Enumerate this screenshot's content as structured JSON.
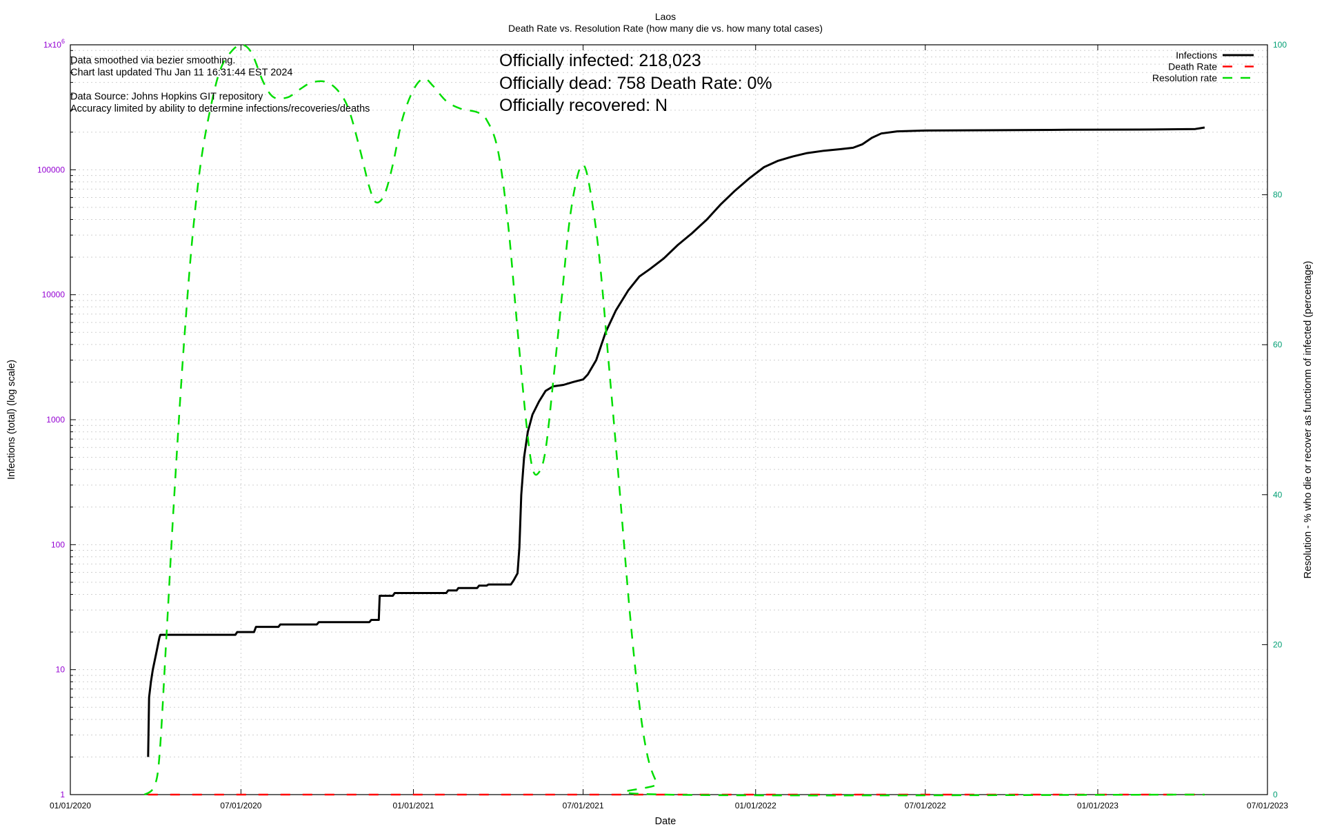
{
  "chart_data": {
    "type": "line",
    "title": "Laos",
    "subtitle": "Death Rate vs. Resolution Rate (how many die vs. how many total cases)",
    "xlabel": "Date",
    "ylabel": "Infections (total) (log scale)",
    "y2label": "Resolution - % who die or recover as functionm of infected (percentage)",
    "x_ticks": [
      "01/01/2020",
      "07/01/2020",
      "01/01/2021",
      "07/01/2021",
      "01/01/2022",
      "07/01/2022",
      "01/01/2023",
      "07/01/2023"
    ],
    "xlim": [
      "2020-01-01",
      "2023-07-01"
    ],
    "y_ticks": [
      "1",
      "10",
      "100",
      "1000",
      "10000",
      "100000"
    ],
    "y_top_label": {
      "base": "1x10",
      "exp": "6"
    },
    "ylim": [
      1,
      1000000
    ],
    "y_scale": "log",
    "y2_ticks": [
      "0",
      "20",
      "40",
      "60",
      "80",
      "100"
    ],
    "y2lim": [
      0,
      100
    ],
    "grid": true,
    "legend_position": "top-right",
    "colors": {
      "infections": "#000000",
      "death_rate": "#ff0000",
      "resolution_rate": "#00dd00",
      "left_axis": "#9400d3",
      "right_axis": "#009e73"
    },
    "series": [
      {
        "name": "Infections",
        "axis": "left",
        "style": "solid",
        "points": [
          [
            "2020-03-24",
            2
          ],
          [
            "2020-03-25",
            6
          ],
          [
            "2020-03-27",
            8
          ],
          [
            "2020-03-29",
            10
          ],
          [
            "2020-04-02",
            14
          ],
          [
            "2020-04-05",
            18
          ],
          [
            "2020-04-06",
            19
          ],
          [
            "2020-06-25",
            19
          ],
          [
            "2020-06-27",
            20
          ],
          [
            "2020-07-15",
            20
          ],
          [
            "2020-07-17",
            22
          ],
          [
            "2020-08-10",
            22
          ],
          [
            "2020-08-12",
            23
          ],
          [
            "2020-09-20",
            23
          ],
          [
            "2020-09-22",
            24
          ],
          [
            "2020-11-15",
            24
          ],
          [
            "2020-11-17",
            25
          ],
          [
            "2020-11-25",
            25
          ],
          [
            "2020-11-26",
            39
          ],
          [
            "2020-12-10",
            39
          ],
          [
            "2020-12-12",
            41
          ],
          [
            "2021-02-05",
            41
          ],
          [
            "2021-02-07",
            43
          ],
          [
            "2021-02-16",
            43
          ],
          [
            "2021-02-18",
            45
          ],
          [
            "2021-03-10",
            45
          ],
          [
            "2021-03-12",
            47
          ],
          [
            "2021-03-20",
            47
          ],
          [
            "2021-03-22",
            48
          ],
          [
            "2021-04-15",
            48
          ],
          [
            "2021-04-18",
            52
          ],
          [
            "2021-04-22",
            59
          ],
          [
            "2021-04-24",
            95
          ],
          [
            "2021-04-26",
            250
          ],
          [
            "2021-04-29",
            500
          ],
          [
            "2021-05-03",
            800
          ],
          [
            "2021-05-08",
            1100
          ],
          [
            "2021-05-15",
            1400
          ],
          [
            "2021-05-22",
            1700
          ],
          [
            "2021-05-30",
            1850
          ],
          [
            "2021-06-10",
            1900
          ],
          [
            "2021-06-20",
            2000
          ],
          [
            "2021-07-01",
            2100
          ],
          [
            "2021-07-06",
            2300
          ],
          [
            "2021-07-15",
            3000
          ],
          [
            "2021-07-25",
            5000
          ],
          [
            "2021-08-05",
            7500
          ],
          [
            "2021-08-18",
            10800
          ],
          [
            "2021-08-30",
            14000
          ],
          [
            "2021-09-10",
            16000
          ],
          [
            "2021-09-25",
            19500
          ],
          [
            "2021-10-10",
            25000
          ],
          [
            "2021-10-25",
            31000
          ],
          [
            "2021-11-10",
            40000
          ],
          [
            "2021-11-25",
            53000
          ],
          [
            "2021-12-10",
            68000
          ],
          [
            "2021-12-25",
            85000
          ],
          [
            "2022-01-10",
            105000
          ],
          [
            "2022-01-25",
            118000
          ],
          [
            "2022-02-10",
            128000
          ],
          [
            "2022-02-25",
            136000
          ],
          [
            "2022-03-15",
            142000
          ],
          [
            "2022-04-01",
            146000
          ],
          [
            "2022-04-15",
            150000
          ],
          [
            "2022-04-25",
            160000
          ],
          [
            "2022-05-05",
            180000
          ],
          [
            "2022-05-15",
            195000
          ],
          [
            "2022-06-01",
            203000
          ],
          [
            "2022-07-01",
            206000
          ],
          [
            "2022-09-01",
            207000
          ],
          [
            "2022-12-01",
            209000
          ],
          [
            "2023-03-01",
            210000
          ],
          [
            "2023-04-15",
            212000
          ],
          [
            "2023-04-25",
            218023
          ]
        ]
      },
      {
        "name": "Death Rate",
        "axis": "right",
        "style": "dashed",
        "points": [
          [
            "2020-03-24",
            0
          ],
          [
            "2023-04-25",
            0
          ]
        ]
      },
      {
        "name": "Resolution rate",
        "axis": "right",
        "style": "dashed",
        "points": [
          [
            "2020-03-20",
            0
          ],
          [
            "2020-03-30",
            1
          ],
          [
            "2020-04-05",
            5
          ],
          [
            "2020-04-12",
            20
          ],
          [
            "2020-04-20",
            38
          ],
          [
            "2020-04-30",
            58
          ],
          [
            "2020-05-10",
            74
          ],
          [
            "2020-05-20",
            85
          ],
          [
            "2020-06-01",
            93
          ],
          [
            "2020-06-10",
            97
          ],
          [
            "2020-06-20",
            99
          ],
          [
            "2020-07-01",
            100
          ],
          [
            "2020-07-12",
            99
          ],
          [
            "2020-07-25",
            95
          ],
          [
            "2020-08-05",
            93
          ],
          [
            "2020-08-20",
            93
          ],
          [
            "2020-09-01",
            94
          ],
          [
            "2020-09-15",
            95
          ],
          [
            "2020-10-01",
            95
          ],
          [
            "2020-10-15",
            93.5
          ],
          [
            "2020-10-25",
            91
          ],
          [
            "2020-11-05",
            86
          ],
          [
            "2020-11-15",
            81
          ],
          [
            "2020-11-22",
            79
          ],
          [
            "2020-12-01",
            80
          ],
          [
            "2020-12-10",
            84
          ],
          [
            "2020-12-20",
            90
          ],
          [
            "2021-01-01",
            94
          ],
          [
            "2021-01-12",
            95.5
          ],
          [
            "2021-01-22",
            94.5
          ],
          [
            "2021-02-05",
            92.5
          ],
          [
            "2021-02-20",
            91.5
          ],
          [
            "2021-03-10",
            91
          ],
          [
            "2021-03-20",
            90
          ],
          [
            "2021-04-01",
            86
          ],
          [
            "2021-04-12",
            76
          ],
          [
            "2021-04-22",
            62
          ],
          [
            "2021-05-01",
            50
          ],
          [
            "2021-05-08",
            43.5
          ],
          [
            "2021-05-15",
            43
          ],
          [
            "2021-05-22",
            46
          ],
          [
            "2021-05-30",
            55
          ],
          [
            "2021-06-08",
            66
          ],
          [
            "2021-06-16",
            76
          ],
          [
            "2021-06-24",
            82
          ],
          [
            "2021-07-01",
            84
          ],
          [
            "2021-07-08",
            81
          ],
          [
            "2021-07-18",
            72
          ],
          [
            "2021-07-28",
            58
          ],
          [
            "2021-08-08",
            42
          ],
          [
            "2021-08-20",
            24
          ],
          [
            "2021-08-30",
            12
          ],
          [
            "2021-09-08",
            5
          ],
          [
            "2021-09-18",
            1.5
          ],
          [
            "2021-09-28",
            0
          ],
          [
            "2023-04-25",
            0
          ]
        ]
      }
    ],
    "annotations_small": [
      "Data smoothed via bezier smoothing.",
      "Chart last updated Thu Jan 11 16:31:44 EST 2024",
      "",
      "Data Source: Johns Hopkins GIT repository",
      "Accuracy limited by ability to determine infections/recoveries/deaths"
    ],
    "annotations_large": {
      "infected": "Officially infected:  218,023",
      "dead": "Officially dead:  758    Death Rate: 0%",
      "recovered": "Officially recovered:  N"
    }
  }
}
